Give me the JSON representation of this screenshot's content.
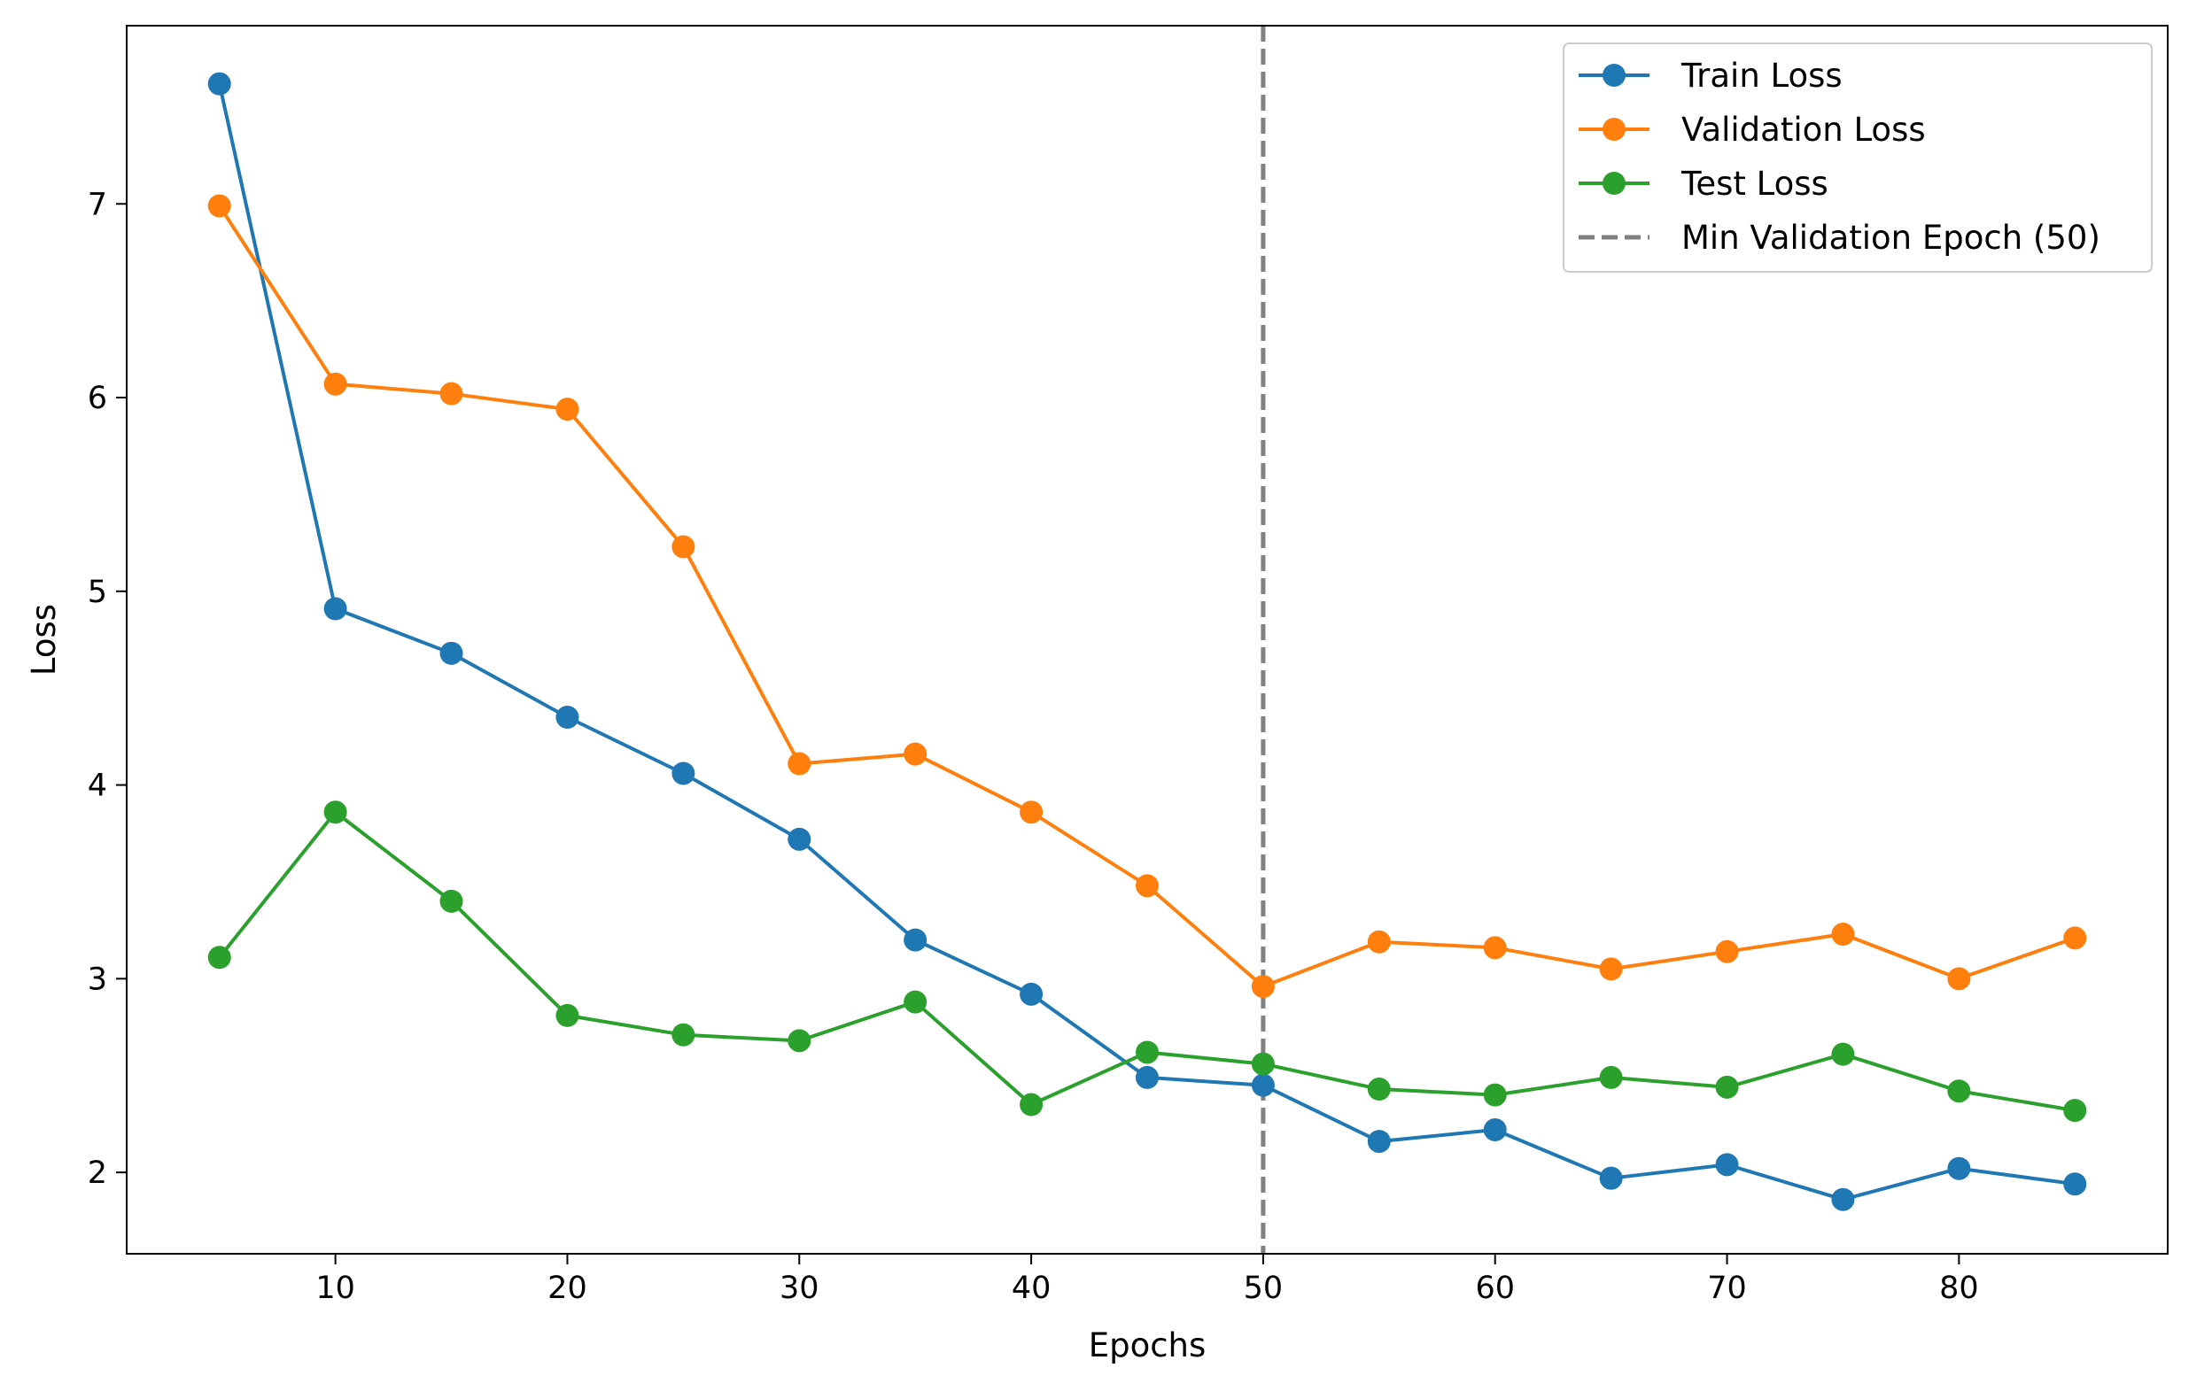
{
  "chart_data": {
    "type": "line",
    "title": "",
    "xlabel": "Epochs",
    "ylabel": "Loss",
    "xlim": [
      1,
      89
    ],
    "ylim": [
      1.58,
      7.92
    ],
    "xticks": [
      10,
      20,
      30,
      40,
      50,
      60,
      70,
      80
    ],
    "yticks": [
      2,
      3,
      4,
      5,
      6,
      7
    ],
    "grid": false,
    "legend_position": "top-right",
    "x": [
      5,
      10,
      15,
      20,
      25,
      30,
      35,
      40,
      45,
      50,
      55,
      60,
      65,
      70,
      75,
      80,
      85
    ],
    "series": [
      {
        "name": "Train Loss",
        "color": "#1f77b4",
        "values": [
          7.62,
          4.91,
          4.68,
          4.35,
          4.06,
          3.72,
          3.2,
          2.92,
          2.49,
          2.45,
          2.16,
          2.22,
          1.97,
          2.04,
          1.86,
          2.02,
          1.94
        ]
      },
      {
        "name": "Validation Loss",
        "color": "#ff7f0e",
        "values": [
          6.99,
          6.07,
          6.02,
          5.94,
          5.23,
          4.11,
          4.16,
          3.86,
          3.48,
          2.96,
          3.19,
          3.16,
          3.05,
          3.14,
          3.23,
          3.0,
          3.21
        ]
      },
      {
        "name": "Test Loss",
        "color": "#2ca02c",
        "values": [
          3.11,
          3.86,
          3.4,
          2.81,
          2.71,
          2.68,
          2.88,
          2.35,
          2.62,
          2.56,
          2.43,
          2.4,
          2.49,
          2.44,
          2.61,
          2.42,
          2.32
        ]
      }
    ],
    "vline": {
      "name": "Min Validation Epoch (50)",
      "x": 50,
      "color": "#808080",
      "style": "dashed"
    }
  }
}
